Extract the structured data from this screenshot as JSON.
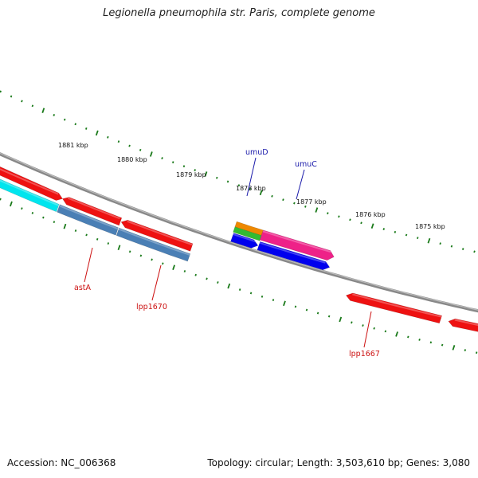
{
  "title": "Legionella pneumophila str. Paris, complete genome",
  "footer": {
    "accession": "Accession: NC_006368",
    "summary": "Topology: circular; Length: 3,503,610 bp; Genes: 3,080"
  },
  "colors": {
    "backbone": "#888888",
    "tick": "#1a7a1a",
    "label_forward": "#1a1aaa",
    "label_reverse": "#cc1111"
  },
  "scale_labels": [
    "1881 kbp",
    "1880 kbp",
    "1879 kbp",
    "1878 kbp",
    "1877 kbp",
    "1876 kbp",
    "1875 kbp"
  ],
  "gene_labels": [
    {
      "name": "umuD",
      "color": "#1a1aaa"
    },
    {
      "name": "umuC",
      "color": "#1a1aaa"
    },
    {
      "name": "astA",
      "color": "#cc1111"
    },
    {
      "name": "lpp1670",
      "color": "#cc1111"
    },
    {
      "name": "lpp1667",
      "color": "#cc1111"
    }
  ],
  "features": [
    {
      "name": "red-1",
      "color": "#ee1111"
    },
    {
      "name": "red-2",
      "color": "#ee1111"
    },
    {
      "name": "red-3",
      "color": "#ee1111"
    },
    {
      "name": "red-4",
      "color": "#ee1111"
    },
    {
      "name": "red-5",
      "color": "#ee1111"
    },
    {
      "name": "cyan-1",
      "color": "#00e5ee"
    },
    {
      "name": "steelblue-1",
      "color": "#4a7fb5"
    },
    {
      "name": "steelblue-2",
      "color": "#4a7fb5"
    },
    {
      "name": "orange-1",
      "color": "#ee8800"
    },
    {
      "name": "green-1",
      "color": "#33bb33"
    },
    {
      "name": "magenta-1",
      "color": "#ee2288"
    },
    {
      "name": "blue-1",
      "color": "#0000ee"
    },
    {
      "name": "blue-2",
      "color": "#0000ee"
    }
  ]
}
